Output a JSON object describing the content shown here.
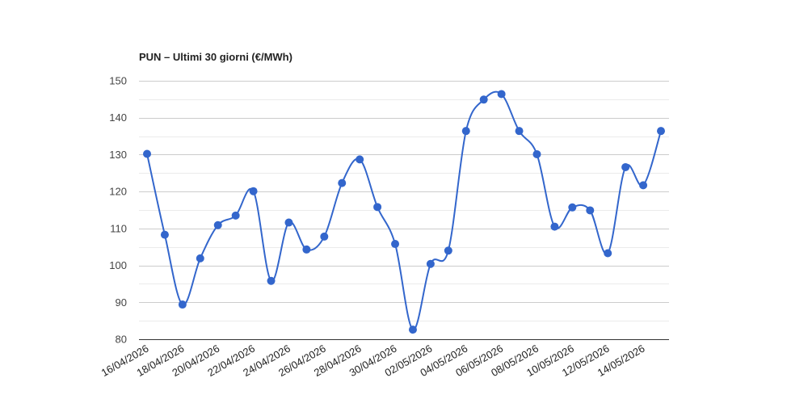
{
  "chart_data": {
    "type": "line",
    "title": "PUN – Ultimi 30 giorni (€/MWh)",
    "xlabel": "",
    "ylabel": "",
    "ylim": [
      80,
      150
    ],
    "yticks": [
      80,
      90,
      100,
      110,
      120,
      130,
      140,
      150
    ],
    "grid": true,
    "smooth": true,
    "legend": "none",
    "color": "#3366cc",
    "x": [
      "16/04/2026",
      "17/04/2026",
      "18/04/2026",
      "19/04/2026",
      "20/04/2026",
      "21/04/2026",
      "22/04/2026",
      "23/04/2026",
      "24/04/2026",
      "25/04/2026",
      "26/04/2026",
      "27/04/2026",
      "28/04/2026",
      "29/04/2026",
      "30/04/2026",
      "01/05/2026",
      "02/05/2026",
      "03/05/2026",
      "04/05/2026",
      "05/05/2026",
      "06/05/2026",
      "07/05/2026",
      "08/05/2026",
      "09/05/2026",
      "10/05/2026",
      "11/05/2026",
      "12/05/2026",
      "13/05/2026",
      "14/05/2026",
      "15/05/2026"
    ],
    "xtick_labels": [
      "16/04/2026",
      "18/04/2026",
      "20/04/2026",
      "22/04/2026",
      "24/04/2026",
      "26/04/2026",
      "28/04/2026",
      "30/04/2026",
      "02/05/2026",
      "04/05/2026",
      "06/05/2026",
      "08/05/2026",
      "10/05/2026",
      "12/05/2026",
      "14/05/2026"
    ],
    "series": [
      {
        "values": [
          130.2,
          108.3,
          89.4,
          101.9,
          110.9,
          113.5,
          120.1,
          95.8,
          111.6,
          104.3,
          107.8,
          122.3,
          128.7,
          115.8,
          105.8,
          82.6,
          100.4,
          104.0,
          136.4,
          144.9,
          146.4,
          136.4,
          130.1,
          110.5,
          115.7,
          114.9,
          103.3,
          126.6,
          121.7,
          136.4
        ]
      }
    ]
  }
}
